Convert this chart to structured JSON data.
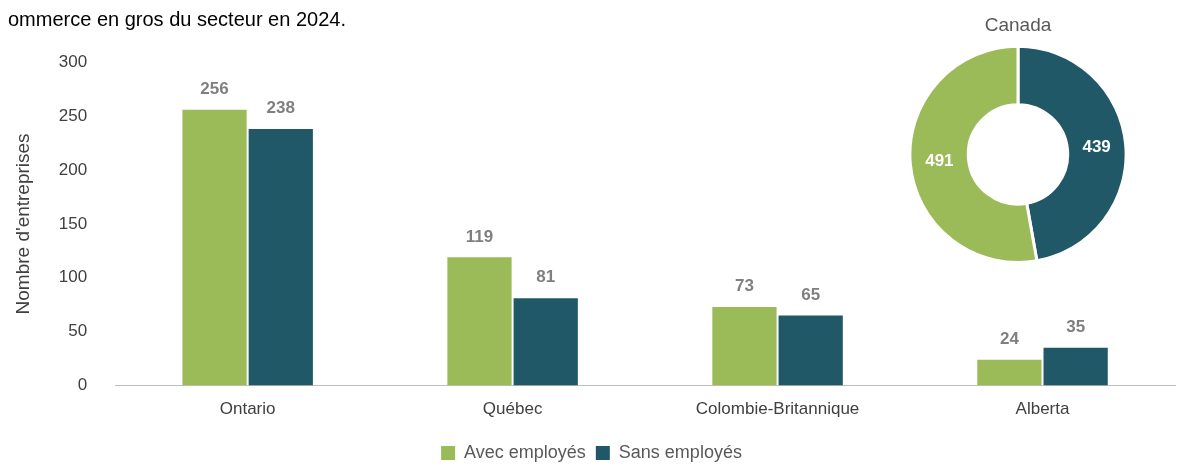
{
  "chart_data": [
    {
      "type": "bar",
      "annotations": [
        "ommerce en gros du secteur en 2024."
      ],
      "ylabel": "Nombre d'entreprises",
      "categories": [
        "Ontario",
        "Québec",
        "Colombie-Britannique",
        "Alberta"
      ],
      "series": [
        {
          "name": "Avec employés",
          "color": "#9bbb59",
          "values": [
            256,
            119,
            73,
            24
          ]
        },
        {
          "name": "Sans employés",
          "color": "#215868",
          "values": [
            238,
            81,
            65,
            35
          ]
        }
      ],
      "ylim": [
        0,
        300
      ],
      "yticks": [
        0,
        50,
        100,
        150,
        200,
        250,
        300
      ],
      "grid": false,
      "legend": "bottom",
      "data_labels": true
    },
    {
      "type": "donut",
      "title": "Canada",
      "categories": [
        null,
        null
      ],
      "values": [
        439,
        491
      ],
      "colors": [
        "#215868",
        "#9bbb59"
      ],
      "data_labels": true,
      "legend": false
    }
  ]
}
